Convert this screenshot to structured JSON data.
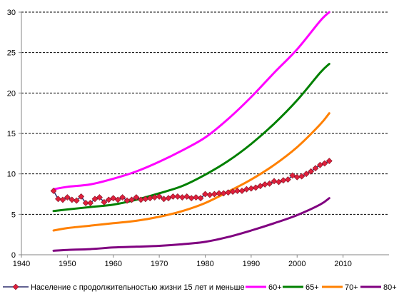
{
  "chart_data": {
    "type": "line",
    "xlim": [
      1940,
      2020
    ],
    "ylim": [
      0,
      30
    ],
    "x_ticks": [
      1940,
      1950,
      1960,
      1970,
      1980,
      1990,
      2000,
      2010
    ],
    "y_ticks": [
      0,
      5,
      10,
      15,
      20,
      25,
      30
    ],
    "grid": "horizontal dashed",
    "legend_position": "bottom",
    "series": [
      {
        "name": "Население с продолжительностью жизни 15 лет и меньше",
        "color": "#E0203C",
        "marker": "diamond",
        "x": [
          1947,
          1948,
          1949,
          1950,
          1951,
          1952,
          1953,
          1954,
          1955,
          1956,
          1957,
          1958,
          1959,
          1960,
          1961,
          1962,
          1963,
          1964,
          1965,
          1966,
          1967,
          1968,
          1969,
          1970,
          1971,
          1972,
          1973,
          1974,
          1975,
          1976,
          1977,
          1978,
          1979,
          1980,
          1981,
          1982,
          1983,
          1984,
          1985,
          1986,
          1987,
          1988,
          1989,
          1990,
          1991,
          1992,
          1993,
          1994,
          1995,
          1996,
          1997,
          1998,
          1999,
          2000,
          2001,
          2002,
          2003,
          2004,
          2005,
          2006,
          2007
        ],
        "y": [
          7.9,
          6.9,
          6.8,
          7.1,
          6.8,
          6.7,
          7.2,
          6.4,
          6.4,
          6.9,
          7.1,
          6.5,
          6.8,
          7.0,
          6.8,
          7.1,
          6.7,
          6.8,
          7.1,
          6.8,
          6.9,
          7.0,
          7.1,
          7.2,
          6.9,
          7.0,
          7.2,
          7.2,
          7.1,
          7.2,
          7.0,
          7.1,
          7.0,
          7.5,
          7.4,
          7.5,
          7.6,
          7.6,
          7.7,
          7.8,
          7.9,
          7.9,
          8.1,
          8.2,
          8.3,
          8.5,
          8.7,
          8.8,
          9.1,
          9.0,
          9.2,
          9.3,
          9.8,
          9.6,
          9.7,
          10.0,
          10.3,
          10.7,
          11.1,
          11.3,
          11.6
        ]
      },
      {
        "name": "60+",
        "color": "#FF00FF",
        "x": [
          1947,
          1950,
          1955,
          1960,
          1965,
          1970,
          1975,
          1980,
          1985,
          1990,
          1995,
          2000,
          2005,
          2007
        ],
        "y": [
          8.1,
          8.4,
          8.7,
          9.4,
          10.3,
          11.5,
          12.9,
          14.5,
          16.8,
          19.5,
          22.5,
          25.4,
          28.9,
          30.0
        ]
      },
      {
        "name": "65+",
        "color": "#008000",
        "x": [
          1947,
          1950,
          1955,
          1960,
          1965,
          1970,
          1975,
          1980,
          1985,
          1990,
          1995,
          2000,
          2005,
          2007
        ],
        "y": [
          5.4,
          5.6,
          5.9,
          6.2,
          6.8,
          7.6,
          8.5,
          9.9,
          11.6,
          13.7,
          16.2,
          19.1,
          22.5,
          23.6
        ]
      },
      {
        "name": "70+",
        "color": "#FF8000",
        "x": [
          1947,
          1950,
          1955,
          1960,
          1965,
          1970,
          1975,
          1980,
          1985,
          1990,
          1995,
          2000,
          2005,
          2007
        ],
        "y": [
          3.0,
          3.3,
          3.6,
          3.9,
          4.2,
          4.7,
          5.4,
          6.4,
          7.8,
          9.3,
          11.1,
          13.3,
          16.1,
          17.5
        ]
      },
      {
        "name": "80+",
        "color": "#800080",
        "x": [
          1947,
          1950,
          1955,
          1960,
          1965,
          1970,
          1975,
          1980,
          1985,
          1990,
          1995,
          2000,
          2005,
          2007
        ],
        "y": [
          0.5,
          0.6,
          0.7,
          0.9,
          1.0,
          1.1,
          1.3,
          1.6,
          2.2,
          3.0,
          3.9,
          4.9,
          6.2,
          7.0
        ]
      }
    ]
  }
}
